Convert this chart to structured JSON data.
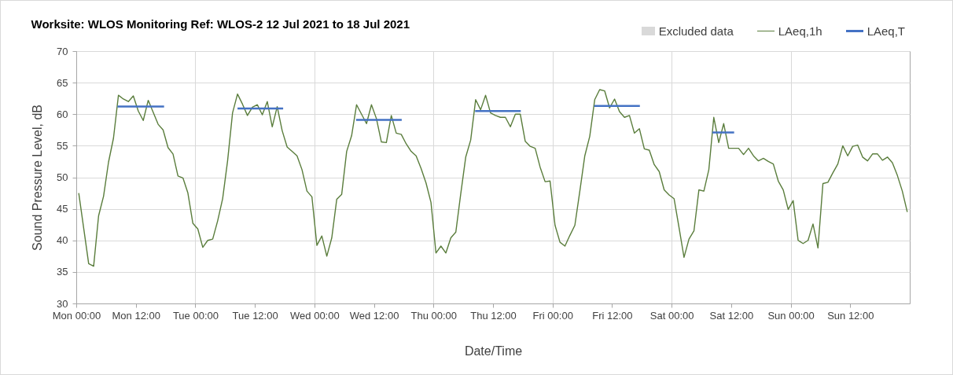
{
  "chart_data": {
    "type": "line",
    "title": "Worksite: WLOS    Monitoring Ref: WLOS-2     12 Jul 2021 to 18 Jul 2021",
    "xlabel": "Date/Time",
    "ylabel": "Sound Pressure Level, dB",
    "xlim": [
      "2021-07-12T00:00",
      "2021-07-19T00:00"
    ],
    "ylim": [
      30,
      70
    ],
    "xticks": [
      {
        "value": "2021-07-12T00:00",
        "label": "Mon 00:00"
      },
      {
        "value": "2021-07-12T12:00",
        "label": "Mon 12:00"
      },
      {
        "value": "2021-07-13T00:00",
        "label": "Tue 00:00"
      },
      {
        "value": "2021-07-13T12:00",
        "label": "Tue 12:00"
      },
      {
        "value": "2021-07-14T00:00",
        "label": "Wed 00:00"
      },
      {
        "value": "2021-07-14T12:00",
        "label": "Wed 12:00"
      },
      {
        "value": "2021-07-15T00:00",
        "label": "Thu 00:00"
      },
      {
        "value": "2021-07-15T12:00",
        "label": "Thu 12:00"
      },
      {
        "value": "2021-07-16T00:00",
        "label": "Fri 00:00"
      },
      {
        "value": "2021-07-16T12:00",
        "label": "Fri 12:00"
      },
      {
        "value": "2021-07-17T00:00",
        "label": "Sat 00:00"
      },
      {
        "value": "2021-07-17T12:00",
        "label": "Sat 12:00"
      },
      {
        "value": "2021-07-18T00:00",
        "label": "Sun 00:00"
      },
      {
        "value": "2021-07-18T12:00",
        "label": "Sun 12:00"
      }
    ],
    "yticks": [
      30,
      35,
      40,
      45,
      50,
      55,
      60,
      65,
      70
    ],
    "grid": true,
    "legend": "top right",
    "series": [
      {
        "name": "Excluded data",
        "type": "area",
        "color": "#d9d9d9"
      },
      {
        "name": "LAeq,1h",
        "type": "line",
        "color": "#5a7d3c",
        "x": [
          "2021-07-12T00:30",
          "2021-07-12T02:30",
          "2021-07-12T03:30",
          "2021-07-12T04:30",
          "2021-07-12T05:30",
          "2021-07-12T06:30",
          "2021-07-12T07:30",
          "2021-07-12T08:30",
          "2021-07-12T09:30",
          "2021-07-12T10:30",
          "2021-07-12T11:30",
          "2021-07-12T12:30",
          "2021-07-12T13:30",
          "2021-07-12T14:30",
          "2021-07-12T15:30",
          "2021-07-12T16:30",
          "2021-07-12T17:30",
          "2021-07-12T18:30",
          "2021-07-12T19:30",
          "2021-07-12T20:30",
          "2021-07-12T21:30",
          "2021-07-12T22:30",
          "2021-07-12T23:30",
          "2021-07-13T00:30",
          "2021-07-13T01:30",
          "2021-07-13T02:30",
          "2021-07-13T03:30",
          "2021-07-13T04:30",
          "2021-07-13T05:30",
          "2021-07-13T06:30",
          "2021-07-13T07:30",
          "2021-07-13T08:30",
          "2021-07-13T09:30",
          "2021-07-13T10:30",
          "2021-07-13T11:30",
          "2021-07-13T12:30",
          "2021-07-13T13:30",
          "2021-07-13T14:30",
          "2021-07-13T15:30",
          "2021-07-13T16:30",
          "2021-07-13T17:30",
          "2021-07-13T18:30",
          "2021-07-13T19:30",
          "2021-07-13T20:30",
          "2021-07-13T21:30",
          "2021-07-13T22:30",
          "2021-07-13T23:30",
          "2021-07-14T00:30",
          "2021-07-14T01:30",
          "2021-07-14T02:30",
          "2021-07-14T03:30",
          "2021-07-14T04:30",
          "2021-07-14T05:30",
          "2021-07-14T06:30",
          "2021-07-14T07:30",
          "2021-07-14T08:30",
          "2021-07-14T09:30",
          "2021-07-14T10:30",
          "2021-07-14T11:30",
          "2021-07-14T12:30",
          "2021-07-14T13:30",
          "2021-07-14T14:30",
          "2021-07-14T15:30",
          "2021-07-14T16:30",
          "2021-07-14T17:30",
          "2021-07-14T18:30",
          "2021-07-14T19:30",
          "2021-07-14T20:30",
          "2021-07-14T21:30",
          "2021-07-14T22:30",
          "2021-07-14T23:30",
          "2021-07-15T00:30",
          "2021-07-15T01:30",
          "2021-07-15T02:30",
          "2021-07-15T03:30",
          "2021-07-15T04:30",
          "2021-07-15T05:30",
          "2021-07-15T06:30",
          "2021-07-15T07:30",
          "2021-07-15T08:30",
          "2021-07-15T09:30",
          "2021-07-15T10:30",
          "2021-07-15T11:30",
          "2021-07-15T12:30",
          "2021-07-15T13:30",
          "2021-07-15T14:30",
          "2021-07-15T15:30",
          "2021-07-15T16:30",
          "2021-07-15T17:30",
          "2021-07-15T18:30",
          "2021-07-15T19:30",
          "2021-07-15T20:30",
          "2021-07-15T21:30",
          "2021-07-15T22:30",
          "2021-07-15T23:30",
          "2021-07-16T00:30",
          "2021-07-16T01:30",
          "2021-07-16T02:30",
          "2021-07-16T03:30",
          "2021-07-16T04:30",
          "2021-07-16T05:30",
          "2021-07-16T06:30",
          "2021-07-16T07:30",
          "2021-07-16T08:30",
          "2021-07-16T09:30",
          "2021-07-16T10:30",
          "2021-07-16T11:30",
          "2021-07-16T12:30",
          "2021-07-16T13:30",
          "2021-07-16T14:30",
          "2021-07-16T15:30",
          "2021-07-16T16:30",
          "2021-07-16T17:30",
          "2021-07-16T18:30",
          "2021-07-16T19:30",
          "2021-07-16T20:30",
          "2021-07-16T21:30",
          "2021-07-16T22:30",
          "2021-07-16T23:30",
          "2021-07-17T00:30",
          "2021-07-17T01:30",
          "2021-07-17T02:30",
          "2021-07-17T03:30",
          "2021-07-17T04:30",
          "2021-07-17T05:30",
          "2021-07-17T06:30",
          "2021-07-17T07:30",
          "2021-07-17T08:30",
          "2021-07-17T09:30",
          "2021-07-17T10:30",
          "2021-07-17T11:30",
          "2021-07-17T12:30",
          "2021-07-17T13:30",
          "2021-07-17T14:30",
          "2021-07-17T15:30",
          "2021-07-17T16:30",
          "2021-07-17T17:30",
          "2021-07-17T18:30",
          "2021-07-17T19:30",
          "2021-07-17T20:30",
          "2021-07-17T21:30",
          "2021-07-17T22:30",
          "2021-07-17T23:30",
          "2021-07-18T00:30",
          "2021-07-18T01:30",
          "2021-07-18T02:30",
          "2021-07-18T03:30",
          "2021-07-18T04:30",
          "2021-07-18T05:30",
          "2021-07-18T06:30",
          "2021-07-18T07:30",
          "2021-07-18T08:30",
          "2021-07-18T09:30",
          "2021-07-18T10:30",
          "2021-07-18T11:30",
          "2021-07-18T12:30",
          "2021-07-18T13:30",
          "2021-07-18T14:30",
          "2021-07-18T15:30",
          "2021-07-18T16:30",
          "2021-07-18T17:30",
          "2021-07-18T18:30",
          "2021-07-18T19:30",
          "2021-07-18T20:30",
          "2021-07-18T21:30",
          "2021-07-18T22:30",
          "2021-07-18T23:30"
        ],
        "values": [
          47.5,
          36.3,
          35.9,
          43.9,
          47.0,
          52.4,
          56.2,
          63.0,
          62.4,
          62.0,
          62.9,
          60.5,
          59.0,
          62.2,
          60.3,
          58.4,
          57.5,
          54.7,
          53.7,
          50.2,
          49.9,
          47.5,
          42.7,
          41.8,
          38.9,
          40.0,
          40.2,
          43.1,
          46.6,
          52.6,
          60.2,
          63.2,
          61.6,
          59.8,
          61.1,
          61.5,
          59.9,
          62.0,
          58.0,
          61.2,
          57.4,
          54.8,
          54.1,
          53.4,
          51.2,
          47.8,
          46.9,
          39.2,
          40.7,
          37.5,
          40.4,
          46.5,
          47.3,
          54.1,
          56.6,
          61.5,
          60.0,
          58.5,
          61.5,
          59.3,
          55.6,
          55.5,
          59.8,
          57.0,
          56.8,
          55.3,
          54.1,
          53.4,
          51.4,
          49.1,
          46.0,
          38.0,
          39.1,
          38.0,
          40.4,
          41.3,
          47.4,
          53.2,
          55.9,
          62.3,
          60.7,
          63.0,
          60.2,
          59.8,
          59.5,
          59.5,
          58.0,
          60.0,
          60.0,
          55.7,
          54.9,
          54.6,
          51.6,
          49.3,
          49.4,
          42.4,
          39.7,
          39.1,
          40.8,
          42.4,
          47.8,
          53.4,
          56.5,
          62.3,
          63.9,
          63.7,
          61.0,
          62.4,
          60.4,
          59.5,
          59.8,
          57.0,
          57.7,
          54.5,
          54.3,
          52.0,
          50.9,
          48.0,
          47.2,
          46.6,
          42.0,
          37.3,
          40.2,
          41.5,
          48.0,
          47.8,
          51.2,
          59.5,
          55.5,
          58.5,
          54.6,
          54.6,
          54.6,
          53.6,
          54.6,
          53.4,
          52.6,
          53.0,
          52.5,
          52.1,
          49.4,
          48.0,
          44.9,
          46.3,
          40.0,
          39.5,
          40.0,
          42.6,
          38.8,
          49.0,
          49.2,
          50.7,
          52.1,
          55.0,
          53.4,
          54.9,
          55.1,
          53.2,
          52.6,
          53.7,
          53.7,
          52.7,
          53.2,
          52.3,
          50.3,
          47.8,
          44.5
        ]
      },
      {
        "name": "LAeq,T",
        "type": "line",
        "color": "#4472c4",
        "x": [
          "2021-07-12T08:18",
          "2021-07-12T17:42",
          "2021-07-13T01:00",
          "2021-07-13T08:30",
          "2021-07-13T17:42",
          "2021-07-14T01:00",
          "2021-07-14T08:24",
          "2021-07-14T17:36",
          "2021-07-15T01:00",
          "2021-07-15T08:24",
          "2021-07-15T17:36",
          "2021-07-16T01:00",
          "2021-07-16T08:24",
          "2021-07-16T17:36",
          "2021-07-17T01:00",
          "2021-07-17T08:12",
          "2021-07-17T12:36"
        ],
        "values": [
          61.2,
          61.2,
          null,
          60.9,
          60.9,
          null,
          59.1,
          59.1,
          null,
          60.5,
          60.5,
          null,
          61.3,
          61.3,
          null,
          57.1,
          57.1
        ]
      }
    ]
  }
}
